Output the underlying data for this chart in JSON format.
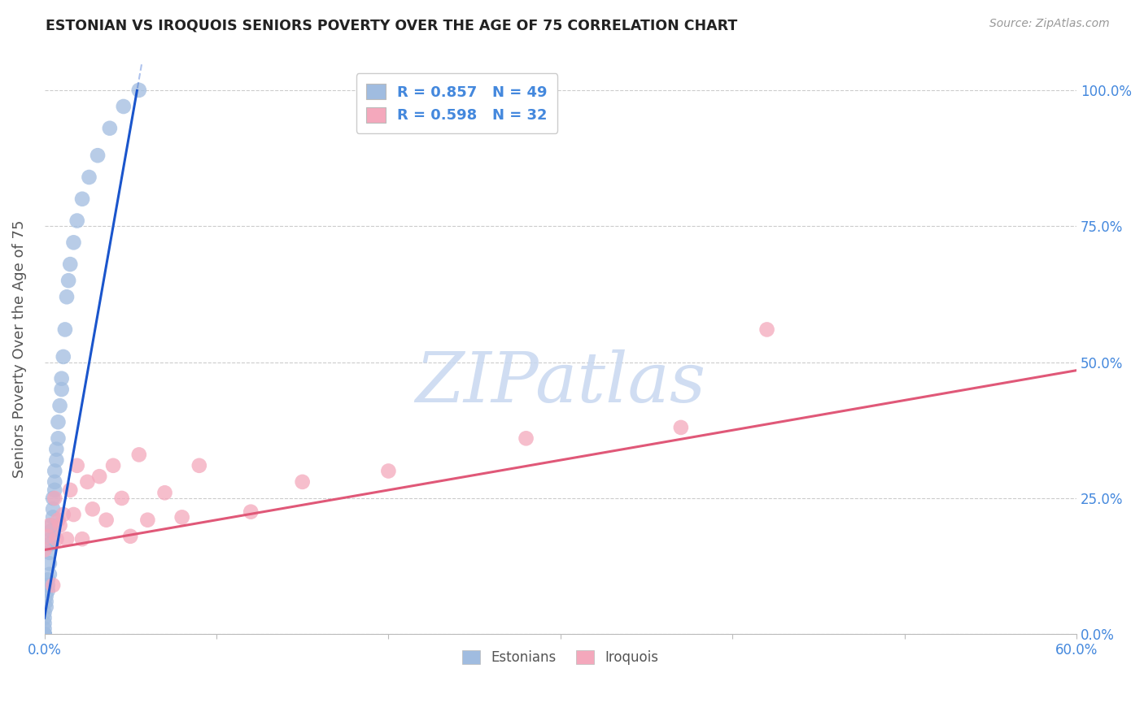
{
  "title": "ESTONIAN VS IROQUOIS SENIORS POVERTY OVER THE AGE OF 75 CORRELATION CHART",
  "source": "Source: ZipAtlas.com",
  "ylabel": "Seniors Poverty Over the Age of 75",
  "legend1_R": "0.857",
  "legend1_N": "49",
  "legend2_R": "0.598",
  "legend2_N": "32",
  "blue_scatter_color": "#a0bce0",
  "pink_scatter_color": "#f4a8bc",
  "blue_line_color": "#1a55cc",
  "pink_line_color": "#e05878",
  "axis_tick_color": "#4488dd",
  "ylabel_color": "#555555",
  "title_color": "#222222",
  "source_color": "#999999",
  "grid_color": "#cccccc",
  "watermark_color": "#c8d8f0",
  "background_color": "#ffffff",
  "xlim": [
    0.0,
    0.6
  ],
  "ylim": [
    0.0,
    1.05
  ],
  "x_ticks": [
    0.0,
    0.1,
    0.2,
    0.3,
    0.4,
    0.5,
    0.6
  ],
  "x_tick_labels": [
    "0.0%",
    "",
    "",
    "",
    "",
    "",
    "60.0%"
  ],
  "y_ticks": [
    0.0,
    0.25,
    0.5,
    0.75,
    1.0
  ],
  "y_tick_labels": [
    "0.0%",
    "25.0%",
    "50.0%",
    "75.0%",
    "100.0%"
  ],
  "legend_labels": [
    "Estonians",
    "Iroquois"
  ],
  "blue_slope": 18.0,
  "blue_intercept": 0.03,
  "pink_slope": 0.55,
  "pink_intercept": 0.155,
  "estonian_x": [
    0.0,
    0.0,
    0.0,
    0.0,
    0.0,
    0.0,
    0.0,
    0.0,
    0.0,
    0.0,
    0.001,
    0.001,
    0.001,
    0.002,
    0.002,
    0.002,
    0.003,
    0.003,
    0.003,
    0.003,
    0.004,
    0.004,
    0.004,
    0.005,
    0.005,
    0.005,
    0.006,
    0.006,
    0.006,
    0.007,
    0.007,
    0.008,
    0.008,
    0.009,
    0.01,
    0.01,
    0.011,
    0.012,
    0.013,
    0.014,
    0.015,
    0.017,
    0.019,
    0.022,
    0.026,
    0.031,
    0.038,
    0.046,
    0.055
  ],
  "estonian_y": [
    0.0,
    0.0,
    0.0,
    0.0,
    0.0,
    0.0,
    0.01,
    0.02,
    0.03,
    0.04,
    0.05,
    0.06,
    0.07,
    0.08,
    0.09,
    0.1,
    0.11,
    0.13,
    0.15,
    0.165,
    0.175,
    0.19,
    0.2,
    0.215,
    0.23,
    0.25,
    0.265,
    0.28,
    0.3,
    0.32,
    0.34,
    0.36,
    0.39,
    0.42,
    0.45,
    0.47,
    0.51,
    0.56,
    0.62,
    0.65,
    0.68,
    0.72,
    0.76,
    0.8,
    0.84,
    0.88,
    0.93,
    0.97,
    1.0
  ],
  "iroquois_x": [
    0.0,
    0.002,
    0.003,
    0.005,
    0.006,
    0.007,
    0.008,
    0.009,
    0.011,
    0.013,
    0.015,
    0.017,
    0.019,
    0.022,
    0.025,
    0.028,
    0.032,
    0.036,
    0.04,
    0.045,
    0.05,
    0.055,
    0.06,
    0.07,
    0.08,
    0.09,
    0.12,
    0.15,
    0.2,
    0.28,
    0.37,
    0.42
  ],
  "iroquois_y": [
    0.155,
    0.18,
    0.2,
    0.09,
    0.25,
    0.175,
    0.21,
    0.2,
    0.22,
    0.175,
    0.265,
    0.22,
    0.31,
    0.175,
    0.28,
    0.23,
    0.29,
    0.21,
    0.31,
    0.25,
    0.18,
    0.33,
    0.21,
    0.26,
    0.215,
    0.31,
    0.225,
    0.28,
    0.3,
    0.36,
    0.38,
    0.56
  ]
}
